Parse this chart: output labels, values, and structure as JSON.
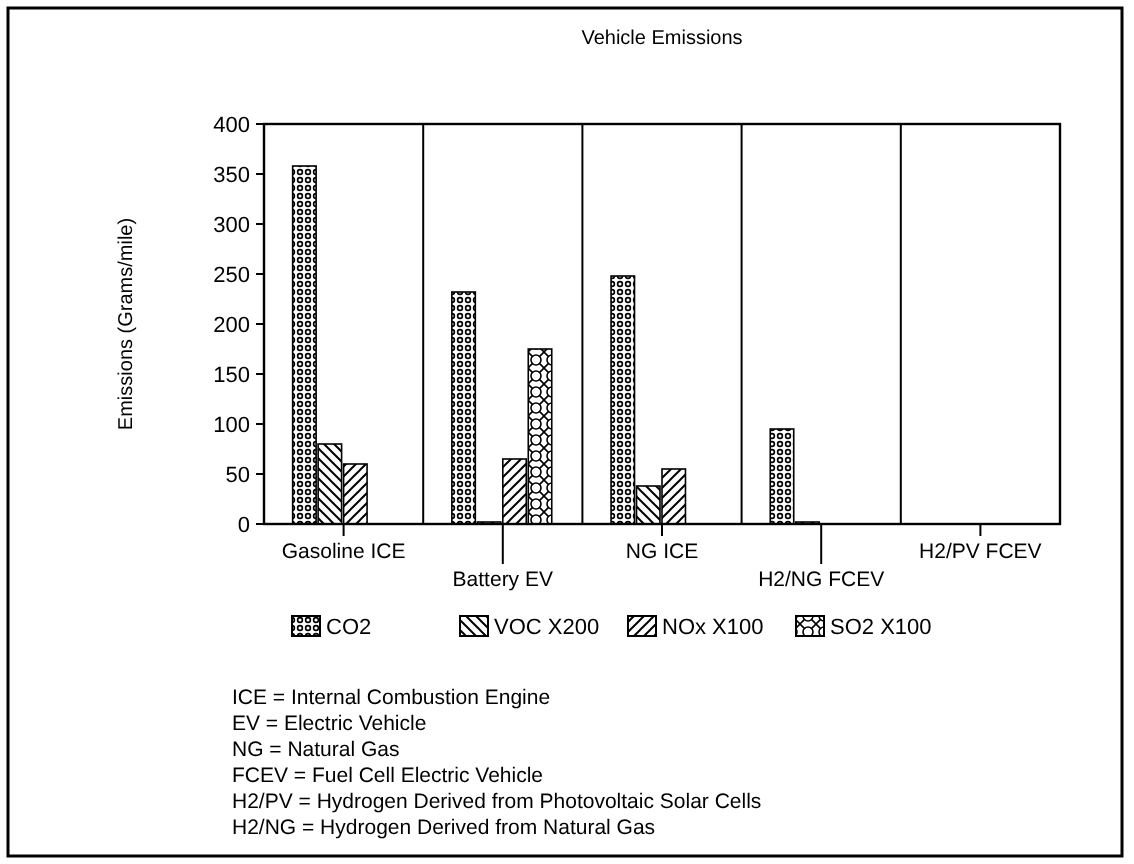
{
  "chart_data": {
    "type": "bar",
    "title": "Vehicle Emissions",
    "ylabel": "Emissions (Grams/mile)",
    "categories": [
      "Gasoline ICE",
      "Battery EV",
      "NG ICE",
      "H2/NG FCEV",
      "H2/PV FCEV"
    ],
    "series": [
      {
        "name": "CO2",
        "color": "#000000",
        "values": [
          358,
          232,
          248,
          95,
          0
        ]
      },
      {
        "name": "VOC X200",
        "color": "#000000",
        "values": [
          80,
          2,
          38,
          2,
          0
        ]
      },
      {
        "name": "NOx X100",
        "color": "#000000",
        "values": [
          60,
          65,
          55,
          0,
          0
        ]
      },
      {
        "name": "SO2 X100",
        "color": "#000000",
        "values": [
          0,
          175,
          0,
          0,
          0
        ]
      }
    ],
    "ylim": [
      0,
      400
    ],
    "yticks": [
      0,
      50,
      100,
      150,
      200,
      250,
      300,
      350,
      400
    ],
    "grid": "x",
    "legend": "bottom",
    "annotations": [
      "ICE = Internal Combustion Engine",
      "EV = Electric Vehicle",
      "NG = Natural Gas",
      "FCEV = Fuel Cell Electric Vehicle",
      "H2/PV = Hydrogen Derived from Photovoltaic Solar Cells",
      "H2/NG = Hydrogen Derived from Natural Gas"
    ]
  }
}
